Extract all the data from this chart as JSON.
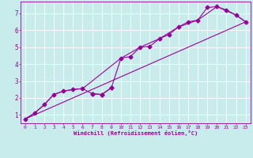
{
  "xlabel": "Windchill (Refroidissement éolien,°C)",
  "bg_color": "#c8ecec",
  "line_color": "#990099",
  "grid_color": "#ffffff",
  "xlim": [
    -0.5,
    23.5
  ],
  "ylim": [
    0.5,
    7.7
  ],
  "xticks": [
    0,
    1,
    2,
    3,
    4,
    5,
    6,
    7,
    8,
    9,
    10,
    11,
    12,
    13,
    14,
    15,
    16,
    17,
    18,
    19,
    20,
    21,
    22,
    23
  ],
  "yticks": [
    1,
    2,
    3,
    4,
    5,
    6,
    7
  ],
  "series_main": [
    [
      0,
      0.75
    ],
    [
      1,
      1.1
    ],
    [
      2,
      1.6
    ],
    [
      3,
      2.2
    ],
    [
      4,
      2.4
    ],
    [
      5,
      2.5
    ],
    [
      6,
      2.55
    ],
    [
      7,
      2.25
    ],
    [
      8,
      2.2
    ],
    [
      9,
      2.6
    ],
    [
      10,
      4.35
    ],
    [
      11,
      4.45
    ],
    [
      12,
      5.0
    ],
    [
      13,
      5.05
    ],
    [
      14,
      5.5
    ],
    [
      15,
      5.75
    ],
    [
      16,
      6.2
    ],
    [
      17,
      6.5
    ],
    [
      18,
      6.6
    ],
    [
      19,
      7.35
    ],
    [
      20,
      7.4
    ],
    [
      21,
      7.2
    ],
    [
      22,
      6.9
    ],
    [
      23,
      6.5
    ]
  ],
  "series_smooth": [
    [
      0,
      0.75
    ],
    [
      1,
      1.1
    ],
    [
      2,
      1.6
    ],
    [
      3,
      2.2
    ],
    [
      4,
      2.4
    ],
    [
      5,
      2.5
    ],
    [
      6,
      2.55
    ],
    [
      10,
      4.35
    ],
    [
      12,
      5.0
    ],
    [
      14,
      5.5
    ],
    [
      16,
      6.2
    ],
    [
      18,
      6.6
    ],
    [
      20,
      7.4
    ],
    [
      22,
      6.9
    ],
    [
      23,
      6.5
    ]
  ],
  "series_linear": [
    [
      0,
      0.75
    ],
    [
      23,
      6.5
    ]
  ],
  "series_branch": [
    [
      7,
      2.25
    ],
    [
      8,
      2.2
    ],
    [
      9,
      2.6
    ]
  ]
}
